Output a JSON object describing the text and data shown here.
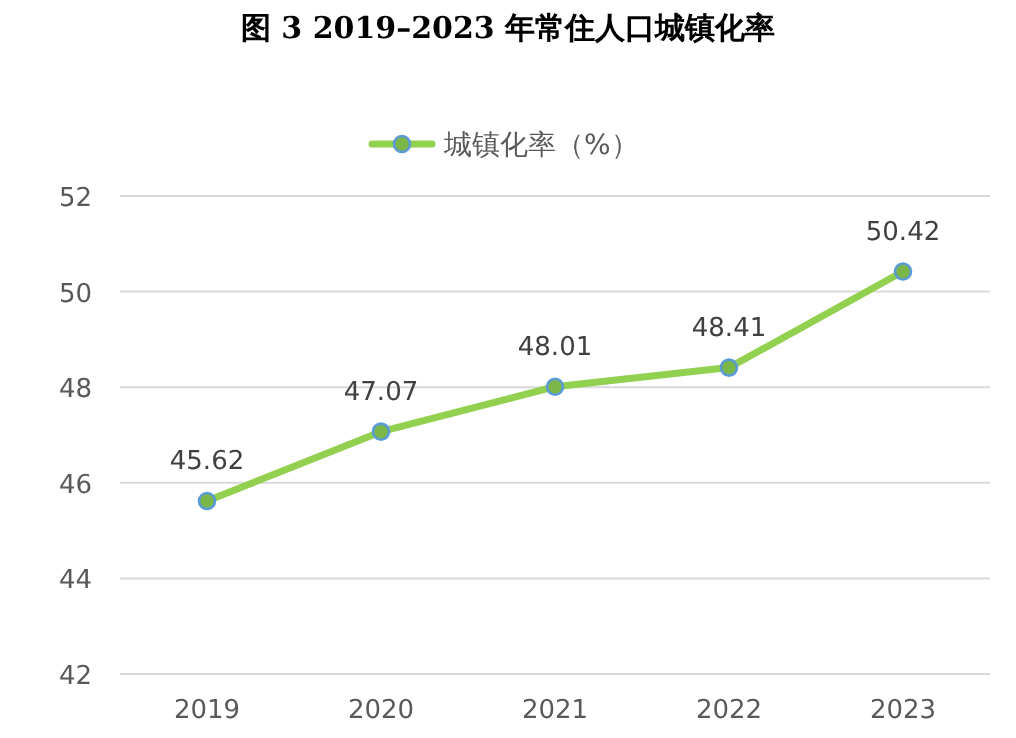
{
  "chart_data": {
    "type": "line",
    "title": "图 3   2019–2023 年常住人口城镇化率",
    "categories": [
      "2019",
      "2020",
      "2021",
      "2022",
      "2023"
    ],
    "series": [
      {
        "name": "城镇化率（%）",
        "color": "#92d050",
        "values": [
          45.62,
          47.07,
          48.01,
          48.41,
          50.42
        ]
      }
    ],
    "ylim": [
      42,
      52
    ],
    "yticks": [
      42,
      44,
      46,
      48,
      50,
      52
    ],
    "grid": "y",
    "legend": "top",
    "marker": "circle",
    "data_labels": true
  }
}
